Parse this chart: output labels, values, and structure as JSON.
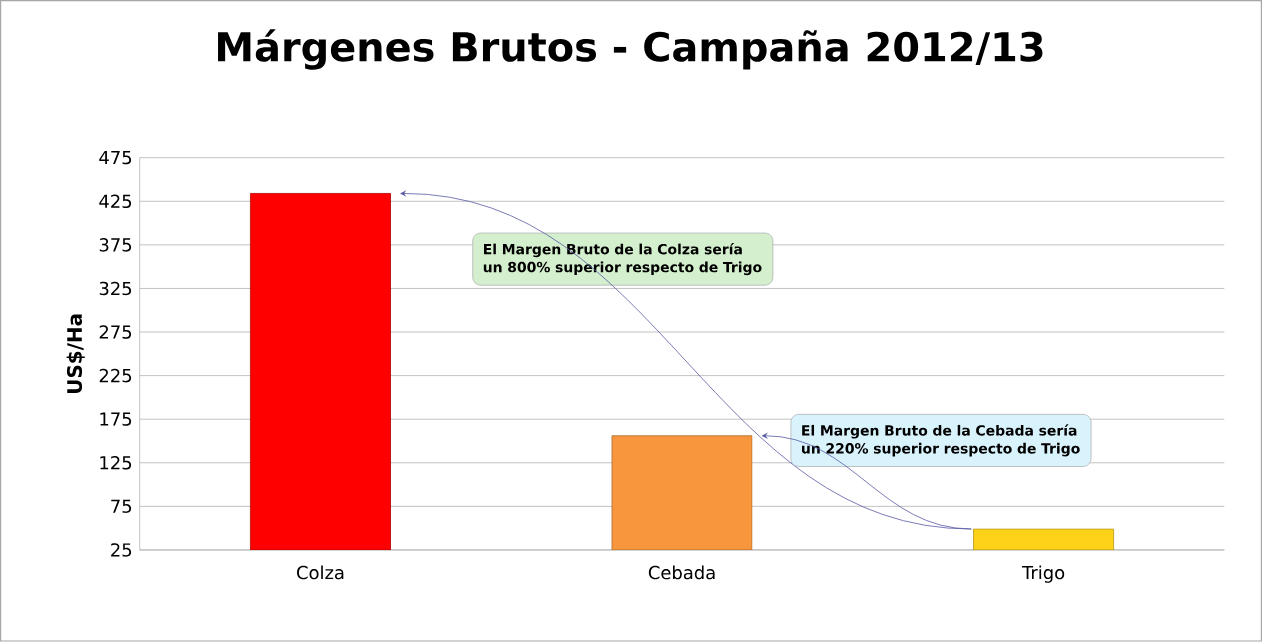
{
  "chart_data": {
    "type": "bar",
    "title": "Márgenes  Brutos - Campaña 2012/13",
    "ylabel": "US$/Ha",
    "categories": [
      "Colza",
      "Cebada",
      "Trigo"
    ],
    "values": [
      434,
      156,
      49
    ],
    "colors": [
      "#ff0000",
      "#f7963c",
      "#ffd21a"
    ],
    "ylim": [
      25,
      475
    ],
    "yticks": [
      25,
      75,
      125,
      175,
      225,
      275,
      325,
      375,
      425,
      475
    ],
    "grid": "y",
    "annotations": [
      "El Margen Bruto de la Colza sería un 800% superior respecto de Trigo",
      "El Margen Bruto de la Cebada sería un 220% superior  respecto de Trigo"
    ]
  }
}
